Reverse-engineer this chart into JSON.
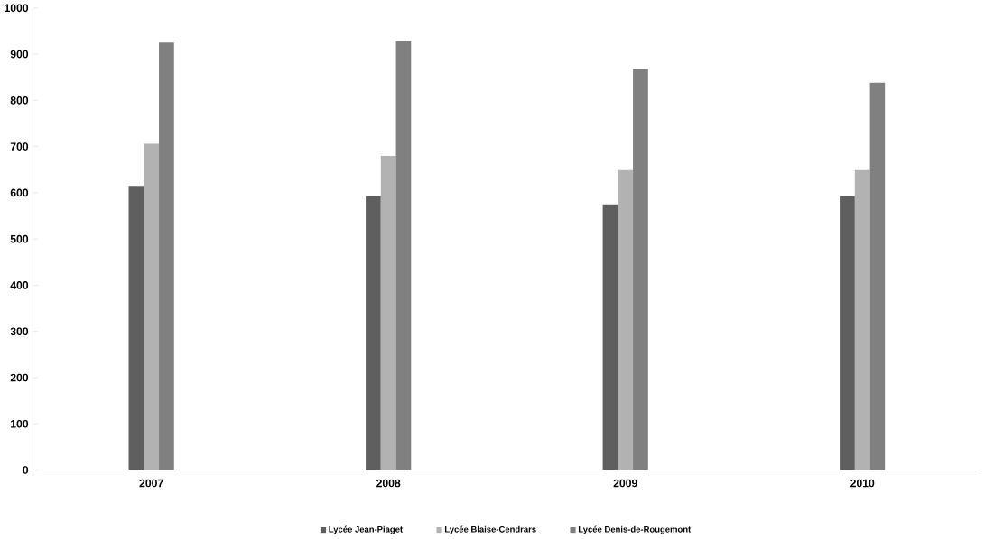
{
  "chart_data": {
    "type": "bar",
    "categories": [
      "2007",
      "2008",
      "2009",
      "2010"
    ],
    "series": [
      {
        "name": "Lycée Jean-Piaget",
        "color": "#5f5f5f",
        "values": [
          615,
          593,
          575,
          593
        ]
      },
      {
        "name": "Lycée Blaise-Cendrars",
        "color": "#b2b2b2",
        "values": [
          706,
          680,
          649,
          649
        ]
      },
      {
        "name": "Lycée Denis-de-Rougemont",
        "color": "#808080",
        "values": [
          925,
          928,
          868,
          838
        ]
      }
    ],
    "ylim": [
      0,
      1000
    ],
    "yticks": [
      0,
      100,
      200,
      300,
      400,
      500,
      600,
      700,
      800,
      900,
      1000
    ],
    "grid": false,
    "legend": "bottom"
  }
}
